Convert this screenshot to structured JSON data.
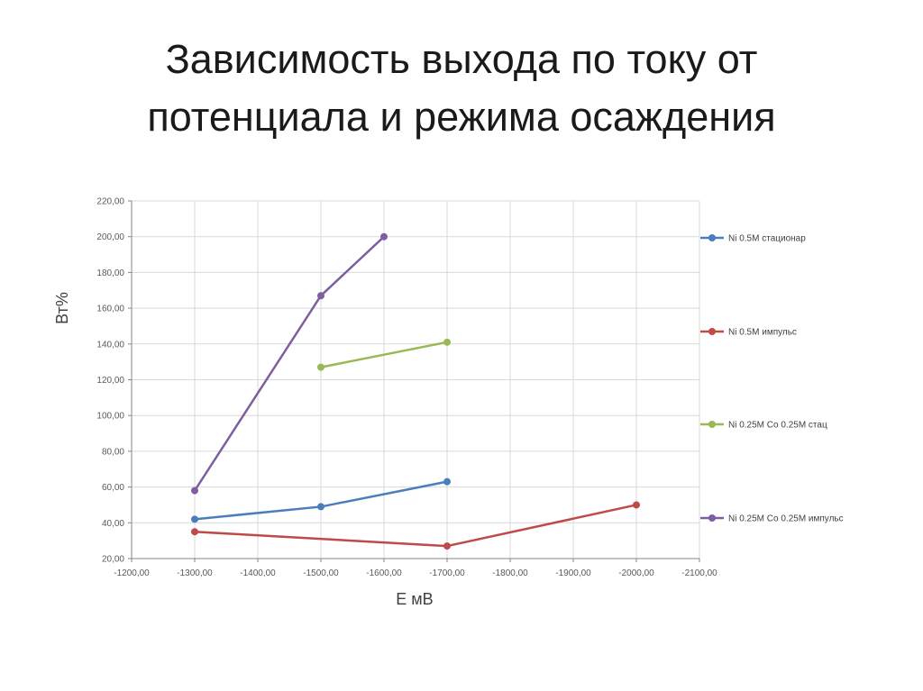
{
  "slide": {
    "title_line1": "Зависимость выхода по току от",
    "title_line2": "потенциала и режима осаждения"
  },
  "chart_data": {
    "type": "line",
    "title": "",
    "xlabel": "E мВ",
    "ylabel": "Вт%",
    "xlim": [
      -1200,
      -2100
    ],
    "ylim": [
      20,
      220
    ],
    "x_reversed": true,
    "x_ticks": [
      -1200,
      -1300,
      -1400,
      -1500,
      -1600,
      -1700,
      -1800,
      -1900,
      -2000,
      -2100
    ],
    "x_tick_labels": [
      "-1200,00",
      "-1300,00",
      "-1400,00",
      "-1500,00",
      "-1600,00",
      "-1700,00",
      "-1800,00",
      "-1900,00",
      "-2000,00",
      "-2100,00"
    ],
    "y_ticks": [
      20,
      40,
      60,
      80,
      100,
      120,
      140,
      160,
      180,
      200,
      220
    ],
    "y_tick_labels": [
      "20,00",
      "40,00",
      "60,00",
      "80,00",
      "100,00",
      "120,00",
      "140,00",
      "160,00",
      "180,00",
      "200,00",
      "220,00"
    ],
    "grid": true,
    "legend_position": "right",
    "series": [
      {
        "name": "Ni 0.5M стационар",
        "color": "#4a7ebb",
        "x": [
          -1300,
          -1500,
          -1700
        ],
        "y": [
          42,
          49,
          63
        ]
      },
      {
        "name": "Ni 0.5M импульс",
        "color": "#be4b48",
        "x": [
          -1300,
          -1700,
          -2000
        ],
        "y": [
          35,
          27,
          50
        ]
      },
      {
        "name": "Ni 0.25M Co 0.25M стац",
        "color": "#98b954",
        "x": [
          -1500,
          -1700
        ],
        "y": [
          127,
          141
        ]
      },
      {
        "name": "Ni 0.25M Co 0.25M импульс",
        "color": "#7d5fa0",
        "x": [
          -1300,
          -1500,
          -1600
        ],
        "y": [
          58,
          167,
          200
        ]
      }
    ]
  }
}
